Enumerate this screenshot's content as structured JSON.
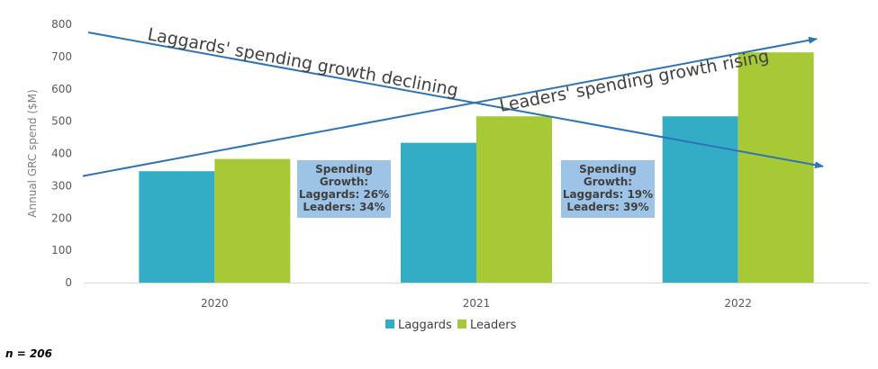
{
  "colors": {
    "laggards": "#33adc6",
    "leaders": "#a6c935",
    "trend": "#2e74b5",
    "box": "#9dc3e6",
    "axis": "#d9d9d9"
  },
  "chart_data": {
    "type": "bar",
    "title": "",
    "xlabel": "",
    "ylabel": "Annual GRC spend ($M)",
    "ylim": [
      0,
      800
    ],
    "yticks": [
      0,
      100,
      200,
      300,
      400,
      500,
      600,
      700,
      800
    ],
    "categories": [
      "2020",
      "2021",
      "2022"
    ],
    "series": [
      {
        "name": "Laggards",
        "values": [
          345,
          433,
          515
        ]
      },
      {
        "name": "Leaders",
        "values": [
          383,
          515,
          713
        ]
      }
    ],
    "legend_position": "bottom",
    "grid": false,
    "annotations": {
      "trend_lines": [
        {
          "label": "Laggards' spending growth declining",
          "from": {
            "category": "start",
            "y": 775
          },
          "to": {
            "category": "end",
            "y": 360
          }
        },
        {
          "label": "Leaders' spending growth rising",
          "from": {
            "category": "start",
            "y": 330
          },
          "to": {
            "category": "end",
            "y": 755
          }
        }
      ],
      "boxes": [
        {
          "lines": [
            "Spending",
            "Growth:",
            "Laggards: 26%",
            "Leaders: 34%"
          ]
        },
        {
          "lines": [
            "Spending",
            "Growth:",
            "Laggards: 19%",
            "Leaders: 39%"
          ]
        }
      ]
    }
  },
  "footnote": "n = 206"
}
